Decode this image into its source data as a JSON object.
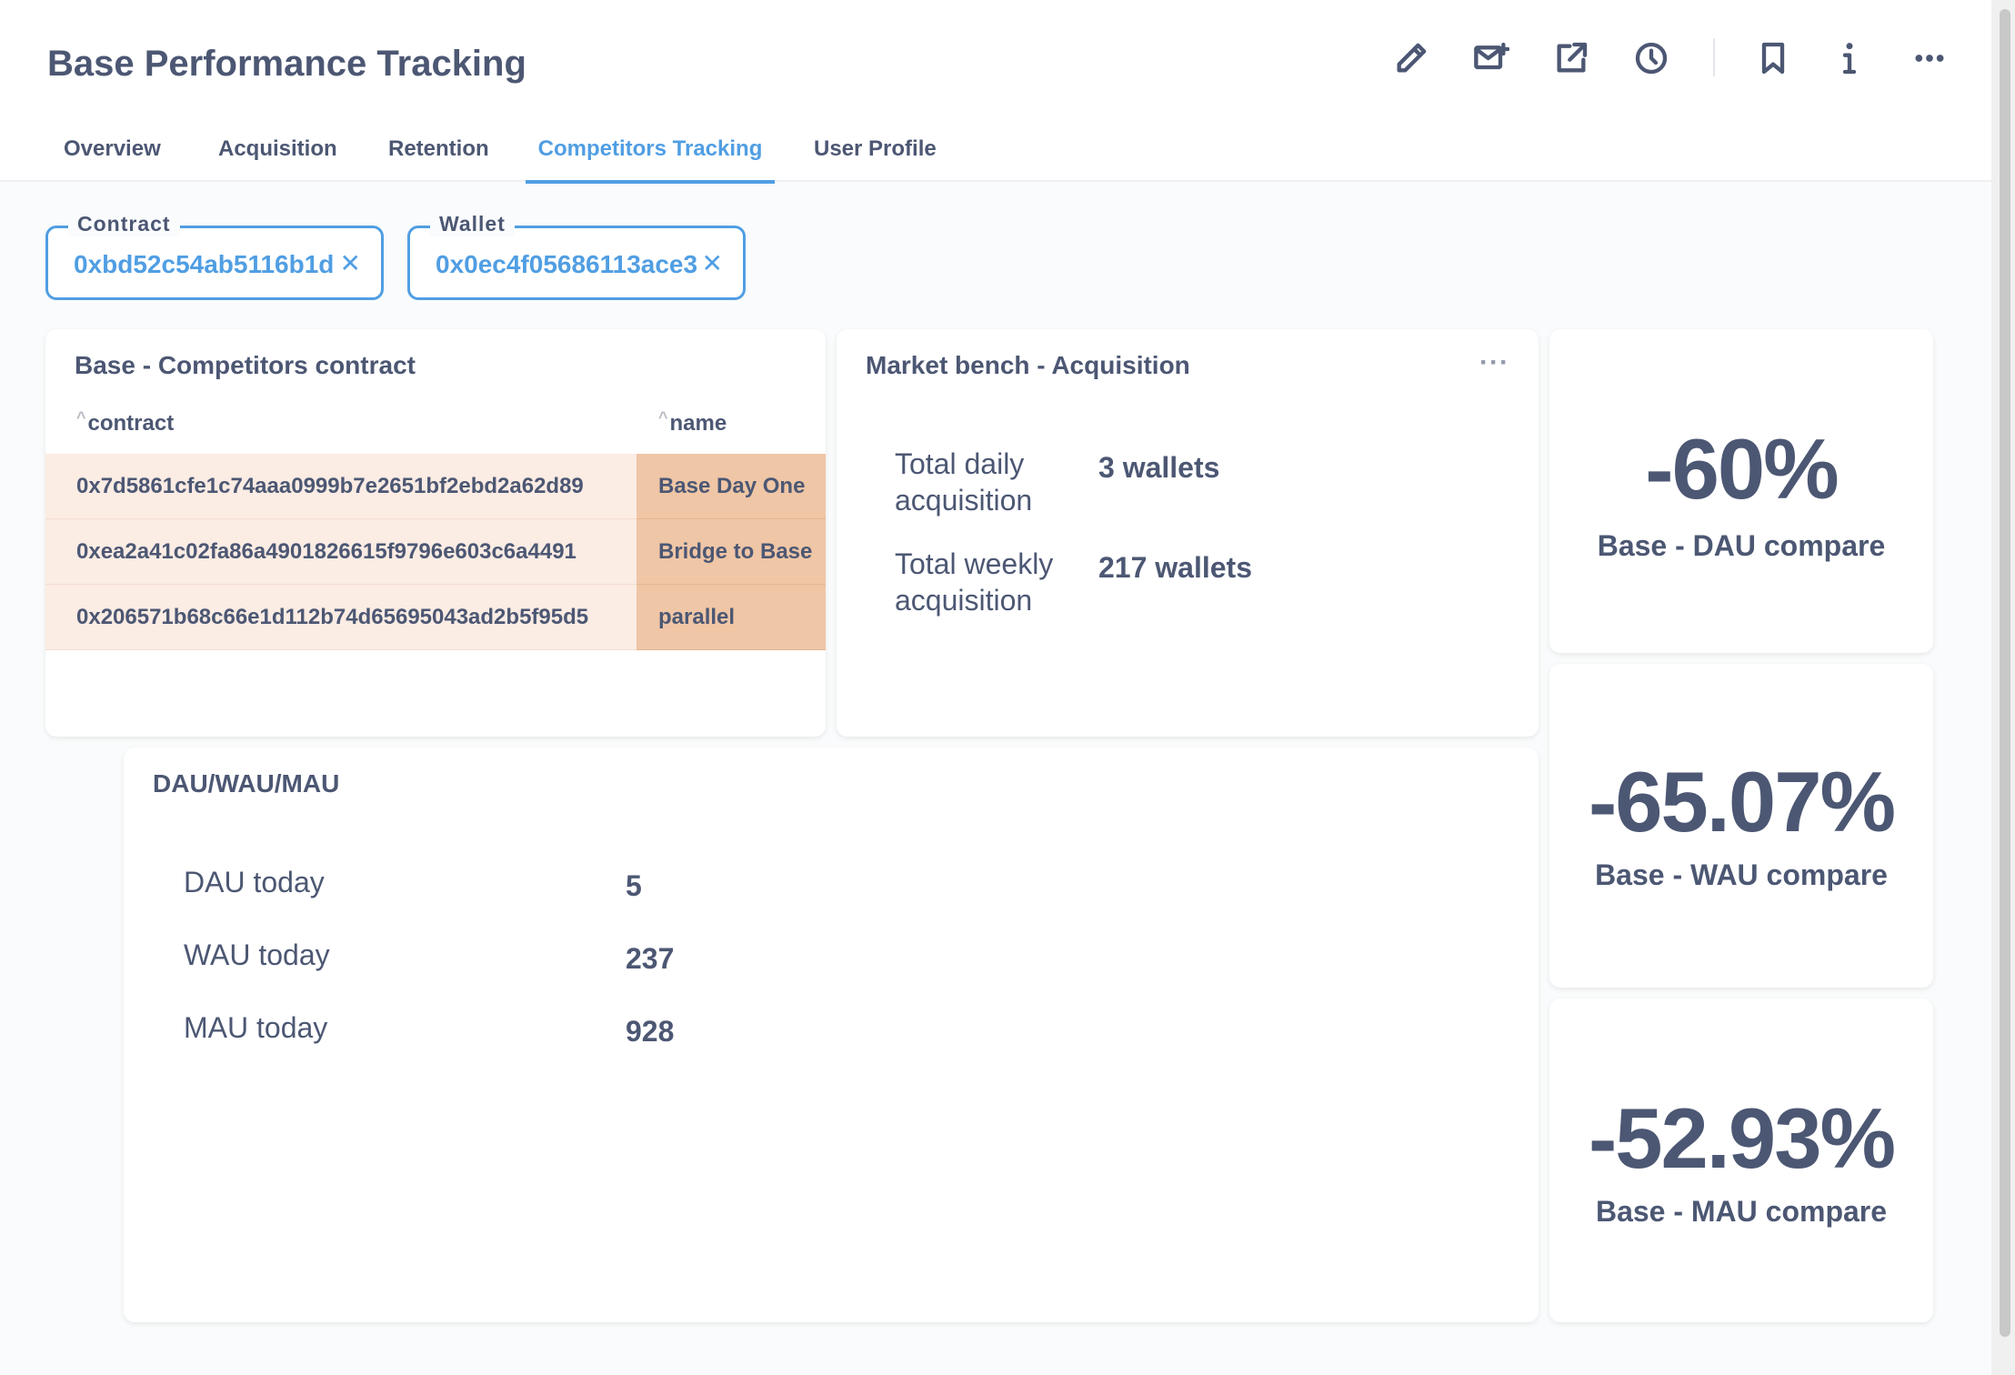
{
  "header": {
    "title": "Base Performance Tracking",
    "icons": [
      "pencil-icon",
      "subscription-icon",
      "share-icon",
      "history-icon",
      "bookmark-icon",
      "info-icon",
      "more-icon"
    ]
  },
  "tabs": [
    {
      "label": "Overview",
      "active": false
    },
    {
      "label": "Acquisition",
      "active": false
    },
    {
      "label": "Retention",
      "active": false
    },
    {
      "label": "Competitors Tracking",
      "active": true
    },
    {
      "label": "User Profile",
      "active": false
    }
  ],
  "filters": {
    "contract": {
      "label": "Contract",
      "value": "0xbd52c54ab5116b1d"
    },
    "wallet": {
      "label": "Wallet",
      "value": "0x0ec4f05686113ace3"
    }
  },
  "competitors_card": {
    "title": "Base - Competitors contract",
    "columns": [
      "contract",
      "name"
    ],
    "rows": [
      {
        "contract": "0x7d5861cfe1c74aaa0999b7e2651bf2ebd2a62d89",
        "name": "Base Day One"
      },
      {
        "contract": "0xea2a41c02fa86a4901826615f9796e603c6a4491",
        "name": "Bridge to Base"
      },
      {
        "contract": "0x206571b68c66e1d112b74d65695043ad2b5f95d5",
        "name": "parallel"
      }
    ]
  },
  "acquisition_card": {
    "title": "Market bench - Acquisition",
    "menu": "···",
    "rows": [
      {
        "label": "Total daily acquisition",
        "value": "3 wallets"
      },
      {
        "label": "Total weekly acquisition",
        "value": "217 wallets"
      }
    ]
  },
  "compare_cards": [
    {
      "value": "-60%",
      "label": "Base - DAU compare"
    },
    {
      "value": "-65.07%",
      "label": "Base - WAU compare"
    },
    {
      "value": "-52.93%",
      "label": "Base - MAU compare"
    }
  ],
  "dau_card": {
    "title": "DAU/WAU/MAU",
    "rows": [
      {
        "label": "DAU today",
        "value": "5"
      },
      {
        "label": "WAU today",
        "value": "237"
      },
      {
        "label": "MAU today",
        "value": "928"
      }
    ]
  },
  "colors": {
    "accent": "#509ee3",
    "text": "#4c5773",
    "contract_cell": "#fbece4",
    "name_cell": "#efc6a6"
  }
}
